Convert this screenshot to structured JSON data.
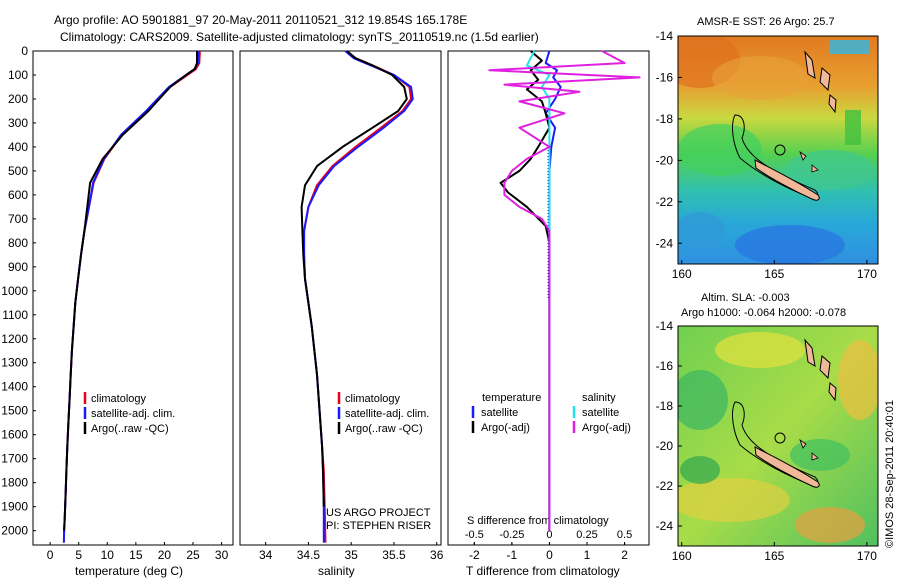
{
  "header": {
    "line1": "Argo profile: AO 5901881_97 20-May-2011 20110521_312 19.854S 165.178E",
    "line2": "Climatology: CARS2009. Satellite-adjusted climatology: synTS_20110519.nc (1.5d earlier)"
  },
  "colors": {
    "climatology": "#e8001c",
    "satellite": "#1a1aff",
    "argo": "#000000",
    "satellite_salinity": "#22e5e5",
    "argo_salinity_diff": "#e020e0",
    "land": "#f0b898"
  },
  "depth_axis": {
    "ticks": [
      "0",
      "100",
      "200",
      "300",
      "400",
      "500",
      "600",
      "700",
      "800",
      "900",
      "1000",
      "1100",
      "1200",
      "1300",
      "1400",
      "1500",
      "1600",
      "1700",
      "1800",
      "1900",
      "2000"
    ],
    "range": [
      0,
      2060
    ]
  },
  "temperature_panel": {
    "xlabel": "temperature (deg C)",
    "xticks": [
      "0",
      "5",
      "10",
      "15",
      "20",
      "25",
      "30"
    ],
    "legend": [
      "climatology",
      "satellite-adj. clim.",
      "Argo(..raw -QC)"
    ]
  },
  "salinity_panel": {
    "xlabel": "salinity",
    "xticks": [
      "34",
      "34.5",
      "35",
      "35.5",
      "36"
    ],
    "legend": [
      "climatology",
      "satellite-adj. clim.",
      "Argo(..raw -QC)"
    ],
    "project_line1": "US ARGO PROJECT",
    "project_line2": "PI: STEPHEN RISER"
  },
  "difference_panel": {
    "legend_head_t": "temperature",
    "legend_head_s": "salinity",
    "legend_t": [
      "satellite",
      "Argo(-adj)"
    ],
    "legend_s": [
      "satellite",
      "Argo(-adj)"
    ],
    "s_label": "S difference from climatology",
    "s_ticks": [
      "-0.5",
      "-0.25",
      "0",
      "0.25",
      "0.5"
    ],
    "t_label": "T difference from climatology",
    "t_ticks": [
      "-2",
      "-1",
      "0",
      "1",
      "2"
    ]
  },
  "map_top": {
    "title": "AMSR-E SST: 26 Argo: 25.7",
    "yticks": [
      "-14",
      "-16",
      "-18",
      "-20",
      "-22",
      "-24"
    ],
    "xticks": [
      "160",
      "165",
      "170"
    ]
  },
  "map_bottom": {
    "title1": "Altim. SLA: -0.003",
    "title2": "Argo h1000: -0.064 h2000: -0.078",
    "yticks": [
      "-14",
      "-16",
      "-18",
      "-20",
      "-22",
      "-24"
    ],
    "xticks": [
      "160",
      "165",
      "170"
    ]
  },
  "stamp": "©IMOS 28-Sep-2011 20:40:01",
  "chart_data": [
    {
      "type": "line",
      "panel": "temperature",
      "xlabel": "temperature (deg C)",
      "ylabel": "",
      "xlim": [
        -3,
        32
      ],
      "ylim": [
        2060,
        0
      ],
      "series": [
        {
          "name": "climatology",
          "color": "#e8001c",
          "x": [
            26.2,
            26.1,
            25.5,
            24.0,
            21.0,
            17.0,
            12.5,
            9.5,
            7.6,
            6.8,
            6.0,
            5.4,
            4.9,
            4.4,
            4.1,
            3.8,
            3.6,
            3.4,
            3.2,
            3.0,
            2.85,
            2.7,
            2.55,
            2.45,
            2.4
          ],
          "y": [
            0,
            50,
            75,
            100,
            150,
            250,
            350,
            450,
            550,
            650,
            750,
            850,
            950,
            1050,
            1150,
            1250,
            1350,
            1450,
            1550,
            1650,
            1750,
            1850,
            1950,
            2000,
            2050
          ]
        },
        {
          "name": "satellite-adj. clim.",
          "color": "#1a1aff",
          "x": [
            26.0,
            25.9,
            25.3,
            23.8,
            20.8,
            16.8,
            12.4,
            9.4,
            7.5,
            6.8,
            6.0,
            5.4,
            4.9,
            4.4,
            4.1,
            3.8,
            3.6,
            3.4,
            3.2,
            3.0,
            2.85,
            2.7,
            2.55,
            2.45,
            2.4
          ],
          "y": [
            0,
            50,
            75,
            100,
            150,
            250,
            350,
            450,
            550,
            650,
            750,
            850,
            950,
            1050,
            1150,
            1250,
            1350,
            1450,
            1550,
            1650,
            1750,
            1850,
            1950,
            2000,
            2050
          ]
        },
        {
          "name": "Argo(..raw -QC)",
          "color": "#000000",
          "x": [
            25.7,
            25.7,
            25.3,
            23.8,
            21.0,
            17.2,
            12.7,
            9.2,
            7.0,
            6.5,
            6.0,
            5.4,
            4.9,
            4.4,
            4.1,
            3.8,
            3.6,
            3.4,
            3.2,
            3.0,
            2.85,
            2.7,
            2.55,
            2.45
          ],
          "y": [
            0,
            50,
            75,
            100,
            150,
            250,
            350,
            450,
            550,
            650,
            750,
            850,
            950,
            1050,
            1150,
            1250,
            1350,
            1450,
            1550,
            1650,
            1750,
            1850,
            1950,
            2000
          ]
        }
      ]
    },
    {
      "type": "line",
      "panel": "salinity",
      "xlabel": "salinity",
      "ylabel": "",
      "xlim": [
        33.7,
        36.05
      ],
      "ylim": [
        2060,
        0
      ],
      "series": [
        {
          "name": "climatology",
          "color": "#e8001c",
          "x": [
            34.95,
            35.05,
            35.25,
            35.5,
            35.68,
            35.7,
            35.6,
            35.35,
            35.05,
            34.78,
            34.6,
            34.5,
            34.45,
            34.45,
            34.46,
            34.5,
            34.54,
            34.57,
            34.6,
            34.62,
            34.64,
            34.66,
            34.68,
            34.69,
            34.7
          ],
          "y": [
            0,
            30,
            60,
            100,
            150,
            200,
            250,
            320,
            400,
            480,
            560,
            650,
            750,
            850,
            950,
            1050,
            1150,
            1250,
            1350,
            1450,
            1550,
            1650,
            1750,
            1900,
            2050
          ]
        },
        {
          "name": "satellite-adj. clim.",
          "color": "#1a1aff",
          "x": [
            34.93,
            35.03,
            35.23,
            35.5,
            35.7,
            35.72,
            35.62,
            35.38,
            35.08,
            34.8,
            34.62,
            34.5,
            34.45,
            34.45,
            34.46,
            34.5,
            34.54,
            34.57,
            34.6,
            34.62,
            34.64,
            34.66,
            34.67,
            34.68,
            34.68
          ],
          "y": [
            0,
            30,
            60,
            100,
            150,
            200,
            250,
            320,
            400,
            480,
            560,
            650,
            750,
            850,
            950,
            1050,
            1150,
            1250,
            1350,
            1450,
            1550,
            1650,
            1750,
            1900,
            2050
          ]
        },
        {
          "name": "Argo(..raw -QC)",
          "color": "#000000",
          "x": [
            34.95,
            35.05,
            35.25,
            35.48,
            35.62,
            35.65,
            35.55,
            35.25,
            34.9,
            34.6,
            34.46,
            34.42,
            34.43,
            34.44,
            34.46,
            34.5,
            34.54,
            34.57,
            34.6,
            34.62,
            34.64,
            34.66,
            34.67,
            34.68
          ],
          "y": [
            0,
            30,
            60,
            100,
            150,
            200,
            250,
            320,
            400,
            480,
            560,
            650,
            750,
            850,
            950,
            1050,
            1150,
            1250,
            1350,
            1450,
            1550,
            1650,
            1750,
            1900
          ]
        }
      ]
    },
    {
      "type": "line",
      "panel": "difference",
      "xlabel": "T difference from climatology",
      "ylabel": "",
      "xlim": [
        -2.7,
        2.65
      ],
      "ylim": [
        2060,
        0
      ],
      "series": [
        {
          "name": "temperature satellite",
          "color": "#1a1aff",
          "x": [
            0.0,
            -0.1,
            0.2,
            0.1,
            0.3,
            0.15,
            -0.1,
            0.15,
            0.05,
            0.0,
            0.0,
            0.0,
            0.0,
            0.0,
            0.0,
            0.0,
            0.0,
            0.0,
            0.0,
            0.0,
            0.0
          ],
          "y": [
            0,
            50,
            80,
            110,
            150,
            200,
            260,
            320,
            400,
            500,
            600,
            700,
            800,
            900,
            1000,
            1200,
            1400,
            1600,
            1800,
            1950,
            2000
          ]
        },
        {
          "name": "temperature Argo(-adj)",
          "color": "#000000",
          "x": [
            -0.5,
            -0.2,
            -0.5,
            -0.3,
            -0.6,
            -0.2,
            -0.1,
            0.0,
            -0.3,
            -0.5,
            -0.8,
            -1.3,
            -1.1,
            -0.6,
            -0.1,
            0.0,
            0.0,
            0.0,
            0.0,
            0.0,
            0.0,
            0.0,
            0.0,
            0.0,
            0.0
          ],
          "y": [
            0,
            40,
            80,
            120,
            160,
            210,
            260,
            320,
            400,
            450,
            500,
            550,
            590,
            650,
            730,
            800,
            900,
            1000,
            1100,
            1200,
            1400,
            1600,
            1800,
            1950,
            2000
          ]
        },
        {
          "name": "salinity satellite",
          "color": "#22e5e5",
          "x": [
            -0.1,
            -0.15,
            0.0,
            -0.05,
            0.0,
            0.0,
            0.0,
            0.0,
            0.0,
            0.0,
            0.0,
            0.0,
            0.0,
            0.0,
            0.0,
            0.0,
            0.0,
            0.0,
            0.0
          ],
          "y": [
            0,
            60,
            100,
            150,
            200,
            260,
            320,
            400,
            500,
            600,
            700,
            800,
            900,
            1000,
            1200,
            1400,
            1600,
            1800,
            2000
          ]
        },
        {
          "name": "salinity Argo(-adj)",
          "color": "#e020e0",
          "x": [
            0.35,
            0.5,
            -0.4,
            0.6,
            -0.3,
            0.2,
            -0.2,
            0.1,
            -0.2,
            0.0,
            -0.15,
            -0.25,
            -0.3,
            -0.3,
            -0.2,
            -0.05,
            0.0,
            0.0,
            0.0,
            0.0,
            0.0,
            0.0,
            0.0,
            0.0
          ],
          "y": [
            0,
            50,
            80,
            110,
            140,
            170,
            210,
            260,
            320,
            400,
            450,
            500,
            550,
            600,
            650,
            700,
            750,
            800,
            900,
            1000,
            1200,
            1500,
            1800,
            2000
          ]
        }
      ]
    }
  ]
}
